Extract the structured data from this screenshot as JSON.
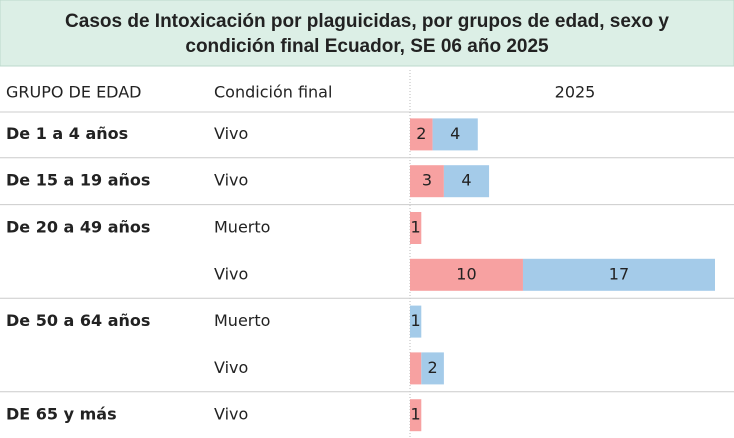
{
  "chart_data": {
    "type": "bar_stacked_horizontal",
    "title": "Casos de Intoxicación por plaguicidas, por grupos de edad, sexo y",
    "subtitle": "condición final Ecuador, SE 06 año 2025",
    "headers": [
      "GRUPO DE EDAD",
      "Condición final",
      "2025"
    ],
    "categories": [
      "De 1 a 4 años",
      "De 15 a 19 años",
      "De 20 a 49 años",
      null,
      "De 50 a 64 años",
      null,
      "DE 65 y más"
    ],
    "conditions": [
      "Vivo",
      "Vivo",
      "Muerto",
      "Vivo",
      "Muerto",
      "Vivo",
      "Vivo"
    ],
    "xlim": [
      0,
      27
    ],
    "series": [
      {
        "color": "#f7a1a1",
        "values": [
          2,
          3,
          1,
          10,
          null,
          1,
          1
        ],
        "value_labels": [
          "2",
          "3",
          "1",
          "10",
          null,
          null,
          "1"
        ]
      },
      {
        "color": "#a4cbe9",
        "values": [
          4,
          4,
          null,
          17,
          1,
          2,
          null
        ],
        "value_labels": [
          "4",
          "4",
          null,
          "17",
          "1",
          "2",
          null
        ]
      }
    ]
  }
}
